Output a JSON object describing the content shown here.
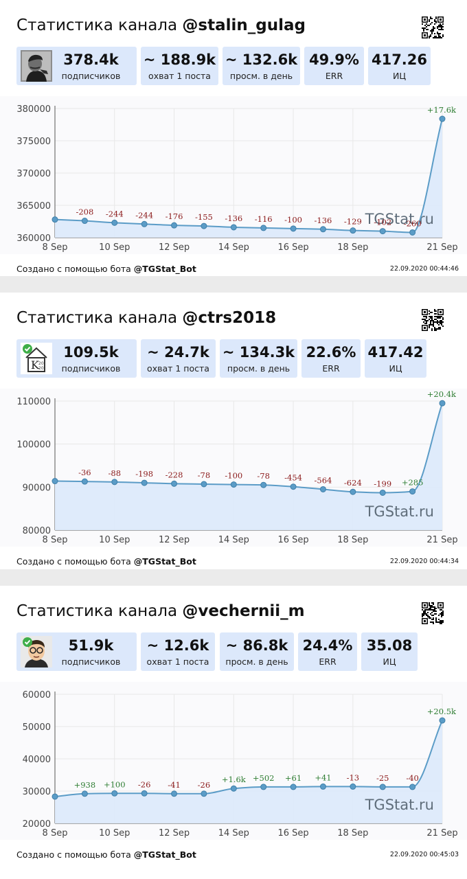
{
  "panels": [
    {
      "title_prefix": "Статистика канала ",
      "channel": "@stalin_gulag",
      "avatar_icon": "stalin-portrait-icon",
      "stats": {
        "subscribers": "378.4k",
        "subscribers_label": "подписчиков",
        "reach": "~ 188.9k",
        "reach_label": "охват 1 поста",
        "views": "~ 132.6k",
        "views_label": "просм. в день",
        "err": "49.9%",
        "err_label": "ERR",
        "ic": "417.26",
        "ic_label": "ИЦ"
      },
      "footer": {
        "text": "Создано с помощью бота ",
        "bot": "@TGStat_Bot",
        "timestamp": "22.09.2020 00:44:46"
      },
      "watermark": "TGStat.ru"
    },
    {
      "title_prefix": "Статистика канала ",
      "channel": "@ctrs2018",
      "avatar_icon": "k-house-logo-icon",
      "stats": {
        "subscribers": "109.5k",
        "subscribers_label": "подписчиков",
        "reach": "~ 24.7k",
        "reach_label": "охват 1 поста",
        "views": "~ 134.3k",
        "views_label": "просм. в день",
        "err": "22.6%",
        "err_label": "ERR",
        "ic": "417.42",
        "ic_label": "ИЦ"
      },
      "footer": {
        "text": "Создано с помощью бота ",
        "bot": "@TGStat_Bot",
        "timestamp": "22.09.2020 00:44:34"
      },
      "watermark": "TGStat.ru"
    },
    {
      "title_prefix": "Статистика канала ",
      "channel": "@vechernii_m",
      "avatar_icon": "cartoon-face-icon",
      "stats": {
        "subscribers": "51.9k",
        "subscribers_label": "подписчиков",
        "reach": "~ 12.6k",
        "reach_label": "охват 1 поста",
        "views": "~ 86.8k",
        "views_label": "просм. в день",
        "err": "24.4%",
        "err_label": "ERR",
        "ic": "35.08",
        "ic_label": "ИЦ"
      },
      "footer": {
        "text": "Создано с помощью бота ",
        "bot": "@TGStat_Bot",
        "timestamp": "22.09.2020 00:45:03"
      },
      "watermark": "TGStat.ru"
    }
  ],
  "colors": {
    "stat_bg": "#dce8fb",
    "line": "#5b9cc7",
    "area": "#ddeafb",
    "point": "#5b9cc7",
    "positive_label": "#2e7d32",
    "negative_label": "#8b1a1a",
    "grid": "#e8e8e8"
  },
  "chart_data": [
    {
      "type": "area",
      "x": [
        "8 Sep",
        "9 Sep",
        "10 Sep",
        "11 Sep",
        "12 Sep",
        "13 Sep",
        "14 Sep",
        "15 Sep",
        "16 Sep",
        "17 Sep",
        "18 Sep",
        "19 Sep",
        "20 Sep",
        "21 Sep"
      ],
      "xticks": [
        "8 Sep",
        "10 Sep",
        "12 Sep",
        "14 Sep",
        "16 Sep",
        "18 Sep",
        "21 Sep"
      ],
      "values": [
        362800,
        362600,
        362300,
        362100,
        361900,
        361800,
        361600,
        361500,
        361400,
        361300,
        361100,
        361000,
        360800,
        378400
      ],
      "labels": [
        "",
        "-208",
        "-244",
        "-244",
        "-176",
        "-155",
        "-136",
        "-116",
        "-100",
        "-136",
        "-129",
        "-102",
        "-260",
        "+17.6k"
      ],
      "ylim": [
        360000,
        380000
      ],
      "yticks": [
        360000,
        365000,
        370000,
        375000,
        380000
      ],
      "grid": true
    },
    {
      "type": "area",
      "x": [
        "8 Sep",
        "9 Sep",
        "10 Sep",
        "11 Sep",
        "12 Sep",
        "13 Sep",
        "14 Sep",
        "15 Sep",
        "16 Sep",
        "17 Sep",
        "18 Sep",
        "19 Sep",
        "20 Sep",
        "21 Sep"
      ],
      "xticks": [
        "8 Sep",
        "10 Sep",
        "12 Sep",
        "14 Sep",
        "16 Sep",
        "18 Sep",
        "21 Sep"
      ],
      "values": [
        91400,
        91300,
        91200,
        91000,
        90800,
        90700,
        90600,
        90500,
        90100,
        89500,
        88900,
        88700,
        89000,
        109500
      ],
      "labels": [
        "",
        "-36",
        "-88",
        "-198",
        "-228",
        "-78",
        "-100",
        "-78",
        "-454",
        "-564",
        "-624",
        "-199",
        "+285",
        "+20.4k"
      ],
      "ylim": [
        80000,
        110000
      ],
      "yticks": [
        80000,
        90000,
        100000,
        110000
      ],
      "grid": true
    },
    {
      "type": "area",
      "x": [
        "8 Sep",
        "9 Sep",
        "10 Sep",
        "11 Sep",
        "12 Sep",
        "13 Sep",
        "14 Sep",
        "15 Sep",
        "16 Sep",
        "17 Sep",
        "18 Sep",
        "19 Sep",
        "20 Sep",
        "21 Sep"
      ],
      "xticks": [
        "8 Sep",
        "10 Sep",
        "12 Sep",
        "14 Sep",
        "16 Sep",
        "18 Sep",
        "21 Sep"
      ],
      "values": [
        28300,
        29200,
        29300,
        29300,
        29200,
        29200,
        30800,
        31300,
        31300,
        31400,
        31400,
        31300,
        31300,
        51900
      ],
      "labels": [
        "",
        "+938",
        "+100",
        "-26",
        "-41",
        "-26",
        "+1.6k",
        "+502",
        "+61",
        "+41",
        "-13",
        "-25",
        "-40",
        "+20.5k"
      ],
      "ylim": [
        20000,
        60000
      ],
      "yticks": [
        20000,
        30000,
        40000,
        50000,
        60000
      ],
      "grid": true
    }
  ]
}
